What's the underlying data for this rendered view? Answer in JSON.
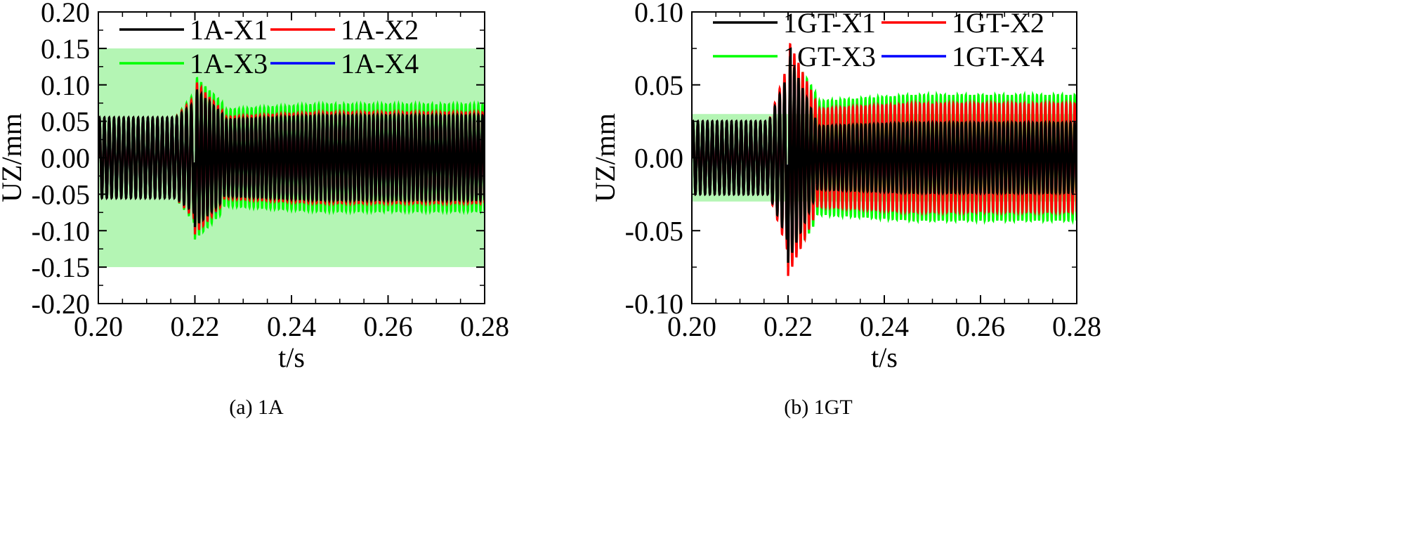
{
  "panels": [
    {
      "caption": "(a) 1A",
      "chart_data": {
        "type": "line",
        "title": "",
        "xlabel": "t/s",
        "ylabel": "UZ/mm",
        "xlim": [
          0.2,
          0.28
        ],
        "ylim": [
          -0.2,
          0.2
        ],
        "xticks": [
          "0.20",
          "0.22",
          "0.24",
          "0.26",
          "0.28"
        ],
        "yticks": [
          "-0.20",
          "-0.15",
          "-0.10",
          "-0.05",
          "0.00",
          "0.05",
          "0.10",
          "0.15",
          "0.20"
        ],
        "band": {
          "ymin": -0.15,
          "ymax": 0.15,
          "color": "#b4f5b4"
        },
        "grid": false,
        "legend_position": "top",
        "frequency_hz": 1000,
        "event_time": 0.22,
        "series": [
          {
            "name": "1A-X1",
            "color": "#000000",
            "pre_amplitude": 0.055,
            "dip": -0.095,
            "post_amplitude": 0.058
          },
          {
            "name": "1A-X2",
            "color": "#ff0000",
            "pre_amplitude": 0.055,
            "dip": -0.105,
            "post_amplitude": 0.062
          },
          {
            "name": "1A-X3",
            "color": "#00ff00",
            "pre_amplitude": 0.055,
            "dip": -0.112,
            "post_amplitude": 0.073
          },
          {
            "name": "1A-X4",
            "color": "#0000ff",
            "pre_amplitude": 0.055,
            "dip": -0.1,
            "post_amplitude": 0.06
          }
        ]
      }
    },
    {
      "caption": "(b) 1GT",
      "chart_data": {
        "type": "line",
        "title": "",
        "xlabel": "t/s",
        "ylabel": "UZ/mm",
        "xlim": [
          0.2,
          0.28
        ],
        "ylim": [
          -0.1,
          0.1
        ],
        "xticks": [
          "0.20",
          "0.22",
          "0.24",
          "0.26",
          "0.28"
        ],
        "yticks": [
          "-0.10",
          "-0.05",
          "0.00",
          "0.05",
          "0.10"
        ],
        "band": {
          "ymin": -0.03,
          "ymax": 0.03,
          "color": "#b4f5b4"
        },
        "grid": false,
        "legend_position": "top",
        "frequency_hz": 1000,
        "event_time": 0.22,
        "series": [
          {
            "name": "1GT-X1",
            "color": "#000000",
            "pre_amplitude": 0.025,
            "dip": -0.072,
            "post_amplitude": 0.024
          },
          {
            "name": "1GT-X2",
            "color": "#ff0000",
            "pre_amplitude": 0.025,
            "dip": -0.081,
            "post_amplitude": 0.037
          },
          {
            "name": "1GT-X3",
            "color": "#00ff00",
            "pre_amplitude": 0.025,
            "dip": -0.075,
            "post_amplitude": 0.043
          },
          {
            "name": "1GT-X4",
            "color": "#0000ff",
            "pre_amplitude": 0.025,
            "dip": -0.07,
            "post_amplitude": 0.03
          }
        ]
      }
    }
  ]
}
